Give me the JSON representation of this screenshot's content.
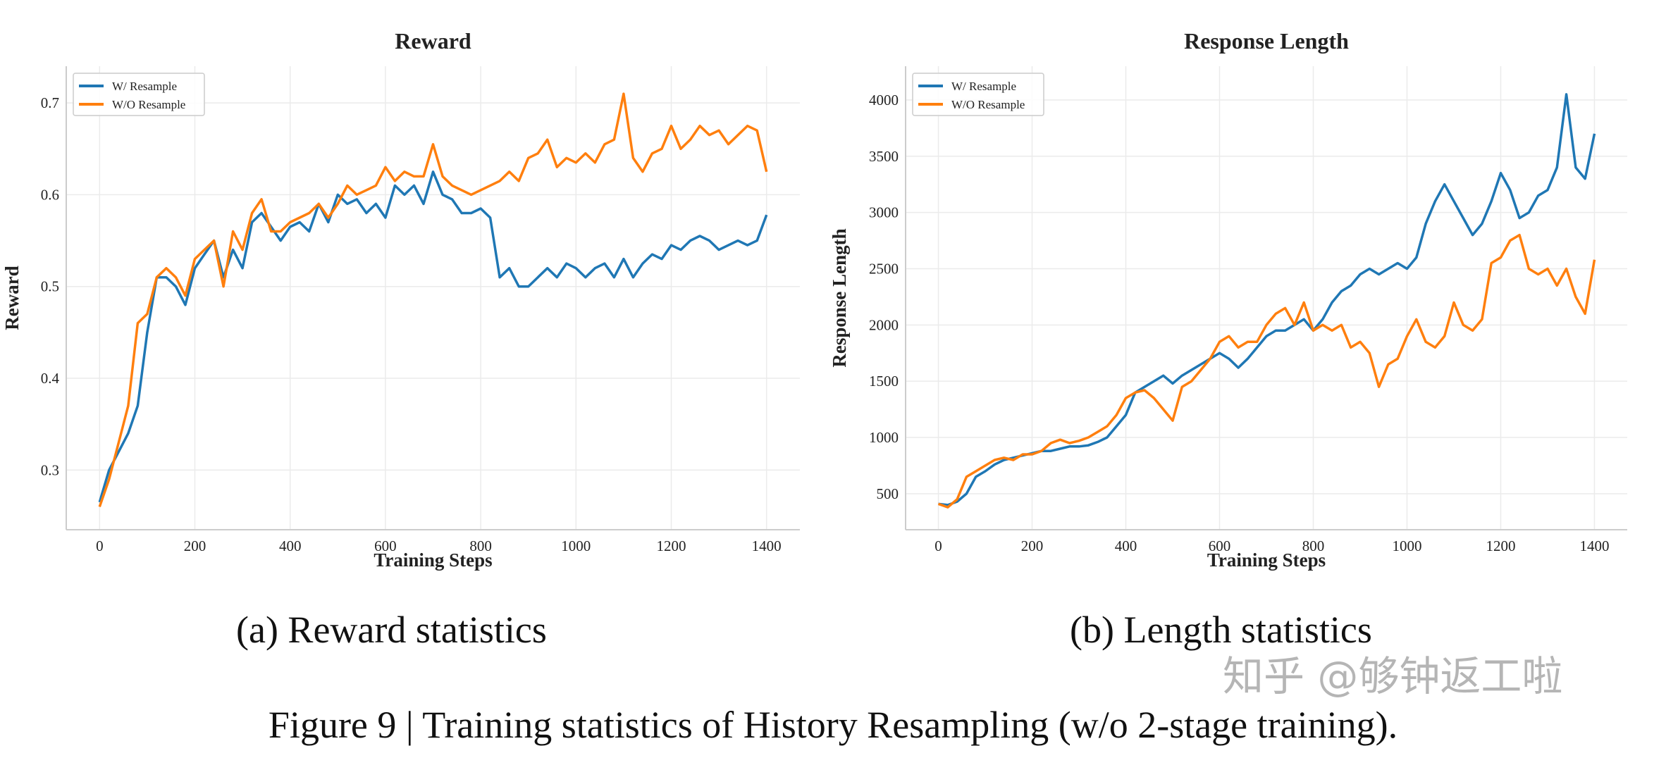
{
  "colors": {
    "w_resample": "#1f77b4",
    "wo_resample": "#ff7f0e",
    "grid": "#ebebeb",
    "axis": "#cccccc"
  },
  "captions": {
    "a": "(a) Reward statistics",
    "b": "(b) Length statistics",
    "figure": "Figure 9 | Training statistics of History Resampling (w/o 2-stage training)."
  },
  "watermark": "知乎 @够钟返工啦",
  "chart_data": [
    {
      "type": "line",
      "title": "Reward",
      "xlabel": "Training Steps",
      "ylabel": "Reward",
      "xlim": [
        -70,
        1470
      ],
      "ylim": [
        0.235,
        0.74
      ],
      "xticks": [
        0,
        200,
        400,
        600,
        800,
        1000,
        1200,
        1400
      ],
      "yticks": [
        0.3,
        0.4,
        0.5,
        0.6,
        0.7
      ],
      "grid": true,
      "legend": "top-left",
      "x": [
        0,
        20,
        40,
        60,
        80,
        100,
        120,
        140,
        160,
        180,
        200,
        220,
        240,
        260,
        280,
        300,
        320,
        340,
        360,
        380,
        400,
        420,
        440,
        460,
        480,
        500,
        520,
        540,
        560,
        580,
        600,
        620,
        640,
        660,
        680,
        700,
        720,
        740,
        760,
        780,
        800,
        820,
        840,
        860,
        880,
        900,
        920,
        940,
        960,
        980,
        1000,
        1020,
        1040,
        1060,
        1080,
        1100,
        1120,
        1140,
        1160,
        1180,
        1200,
        1220,
        1240,
        1260,
        1280,
        1300,
        1320,
        1340,
        1360,
        1380,
        1400
      ],
      "series": [
        {
          "name": "W/ Resample",
          "values": [
            0.265,
            0.3,
            0.32,
            0.34,
            0.37,
            0.45,
            0.51,
            0.51,
            0.5,
            0.48,
            0.52,
            0.535,
            0.55,
            0.51,
            0.54,
            0.52,
            0.57,
            0.58,
            0.565,
            0.55,
            0.565,
            0.57,
            0.56,
            0.59,
            0.57,
            0.6,
            0.59,
            0.595,
            0.58,
            0.59,
            0.575,
            0.61,
            0.6,
            0.61,
            0.59,
            0.625,
            0.6,
            0.595,
            0.58,
            0.58,
            0.585,
            0.575,
            0.51,
            0.52,
            0.5,
            0.5,
            0.51,
            0.52,
            0.51,
            0.525,
            0.52,
            0.51,
            0.52,
            0.525,
            0.51,
            0.53,
            0.51,
            0.525,
            0.535,
            0.53,
            0.545,
            0.54,
            0.55,
            0.555,
            0.55,
            0.54,
            0.545,
            0.55,
            0.545,
            0.55,
            0.578
          ]
        },
        {
          "name": "W/O Resample",
          "values": [
            0.26,
            0.29,
            0.33,
            0.37,
            0.46,
            0.47,
            0.51,
            0.52,
            0.51,
            0.49,
            0.53,
            0.54,
            0.55,
            0.5,
            0.56,
            0.54,
            0.58,
            0.595,
            0.56,
            0.56,
            0.57,
            0.575,
            0.58,
            0.59,
            0.575,
            0.59,
            0.61,
            0.6,
            0.605,
            0.61,
            0.63,
            0.615,
            0.625,
            0.62,
            0.62,
            0.655,
            0.62,
            0.61,
            0.605,
            0.6,
            0.605,
            0.61,
            0.615,
            0.625,
            0.615,
            0.64,
            0.645,
            0.66,
            0.63,
            0.64,
            0.635,
            0.645,
            0.635,
            0.655,
            0.66,
            0.71,
            0.64,
            0.625,
            0.645,
            0.65,
            0.675,
            0.65,
            0.66,
            0.675,
            0.665,
            0.67,
            0.655,
            0.665,
            0.675,
            0.67,
            0.625
          ]
        }
      ]
    },
    {
      "type": "line",
      "title": "Response Length",
      "xlabel": "Training Steps",
      "ylabel": "Response Length",
      "xlim": [
        -70,
        1470
      ],
      "ylim": [
        180,
        4300
      ],
      "xticks": [
        0,
        200,
        400,
        600,
        800,
        1000,
        1200,
        1400
      ],
      "yticks": [
        500,
        1000,
        1500,
        2000,
        2500,
        3000,
        3500,
        4000
      ],
      "grid": true,
      "legend": "top-left",
      "x": [
        0,
        20,
        40,
        60,
        80,
        100,
        120,
        140,
        160,
        180,
        200,
        220,
        240,
        260,
        280,
        300,
        320,
        340,
        360,
        380,
        400,
        420,
        440,
        460,
        480,
        500,
        520,
        540,
        560,
        580,
        600,
        620,
        640,
        660,
        680,
        700,
        720,
        740,
        760,
        780,
        800,
        820,
        840,
        860,
        880,
        900,
        920,
        940,
        960,
        980,
        1000,
        1020,
        1040,
        1060,
        1080,
        1100,
        1120,
        1140,
        1160,
        1180,
        1200,
        1220,
        1240,
        1260,
        1280,
        1300,
        1320,
        1340,
        1360,
        1380,
        1400
      ],
      "series": [
        {
          "name": "W/ Resample",
          "values": [
            410,
            400,
            430,
            500,
            650,
            700,
            760,
            800,
            820,
            840,
            860,
            880,
            880,
            900,
            920,
            920,
            930,
            960,
            1000,
            1100,
            1200,
            1400,
            1450,
            1500,
            1550,
            1480,
            1550,
            1600,
            1650,
            1700,
            1750,
            1700,
            1620,
            1700,
            1800,
            1900,
            1950,
            1950,
            2000,
            2050,
            1950,
            2050,
            2200,
            2300,
            2350,
            2450,
            2500,
            2450,
            2500,
            2550,
            2500,
            2600,
            2900,
            3100,
            3250,
            3100,
            2950,
            2800,
            2900,
            3100,
            3350,
            3200,
            2950,
            3000,
            3150,
            3200,
            3400,
            4050,
            3400,
            3300,
            3700
          ]
        },
        {
          "name": "W/O Resample",
          "values": [
            410,
            380,
            450,
            650,
            700,
            750,
            800,
            820,
            800,
            850,
            850,
            880,
            950,
            980,
            950,
            970,
            1000,
            1050,
            1100,
            1200,
            1350,
            1400,
            1420,
            1350,
            1250,
            1150,
            1450,
            1500,
            1600,
            1700,
            1850,
            1900,
            1800,
            1850,
            1850,
            2000,
            2100,
            2150,
            2000,
            2200,
            1950,
            2000,
            1950,
            2000,
            1800,
            1850,
            1750,
            1450,
            1650,
            1700,
            1900,
            2050,
            1850,
            1800,
            1900,
            2200,
            2000,
            1950,
            2050,
            2550,
            2600,
            2750,
            2800,
            2500,
            2450,
            2500,
            2350,
            2500,
            2250,
            2100,
            2580
          ]
        }
      ]
    }
  ]
}
